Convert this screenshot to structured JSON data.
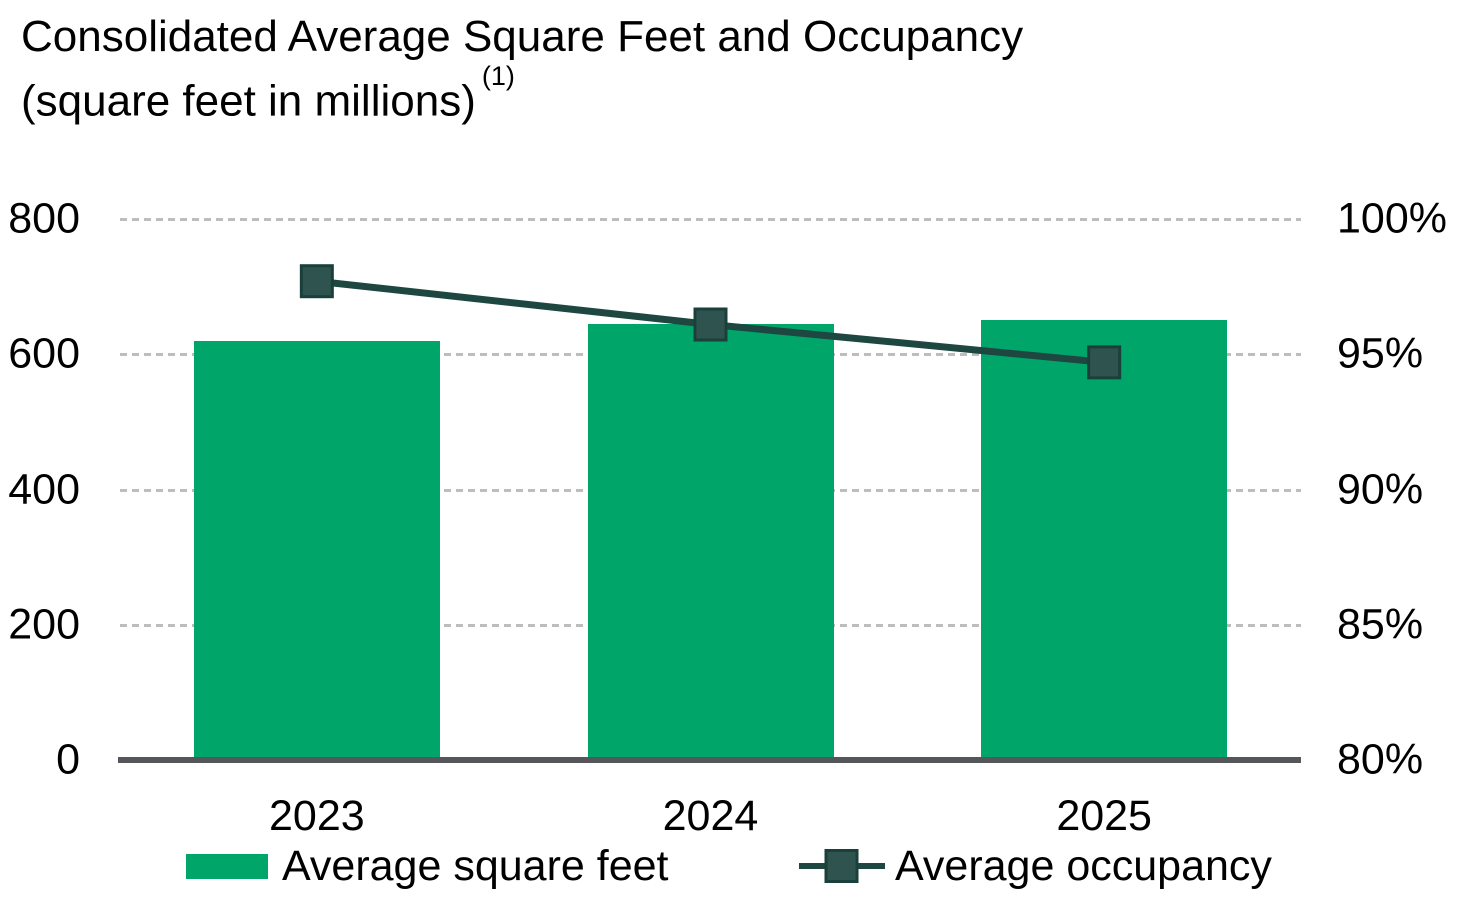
{
  "title": {
    "line1": "Consolidated Average Square Feet and Occupancy",
    "line2": "(square feet in millions)",
    "footnote_marker": "(1)"
  },
  "legend": {
    "bar_label": "Average square feet",
    "line_label": "Average occupancy"
  },
  "colors": {
    "bar": "#00A669",
    "line": "#1E4742",
    "marker_fill": "#2F5450",
    "marker_stroke": "#1A403C",
    "axis_line": "#55565A",
    "gridline": "#BDBDBD",
    "text": "#000000"
  },
  "chart_data": {
    "type": "bar",
    "title": "Consolidated Average Square Feet and Occupancy (square feet in millions) (1)",
    "categories": [
      "2023",
      "2024",
      "2025"
    ],
    "series": [
      {
        "name": "Average square feet",
        "type": "bar",
        "axis": "left",
        "values": [
          620,
          645,
          650
        ]
      },
      {
        "name": "Average occupancy",
        "type": "line",
        "axis": "right",
        "unit": "%",
        "values": [
          97.7,
          96.1,
          94.7
        ]
      }
    ],
    "left_axis": {
      "range": [
        0,
        800
      ],
      "ticks": [
        0,
        200,
        400,
        600,
        800
      ],
      "tick_labels": [
        "0",
        "200",
        "400",
        "600",
        "800"
      ]
    },
    "right_axis": {
      "range": [
        80,
        100
      ],
      "ticks": [
        80,
        85,
        90,
        95,
        100
      ],
      "tick_labels": [
        "80%",
        "85%",
        "90%",
        "95%",
        "100%"
      ]
    },
    "grid": "horizontal dashed",
    "legend_position": "bottom",
    "xlabel": "",
    "ylabel": ""
  }
}
